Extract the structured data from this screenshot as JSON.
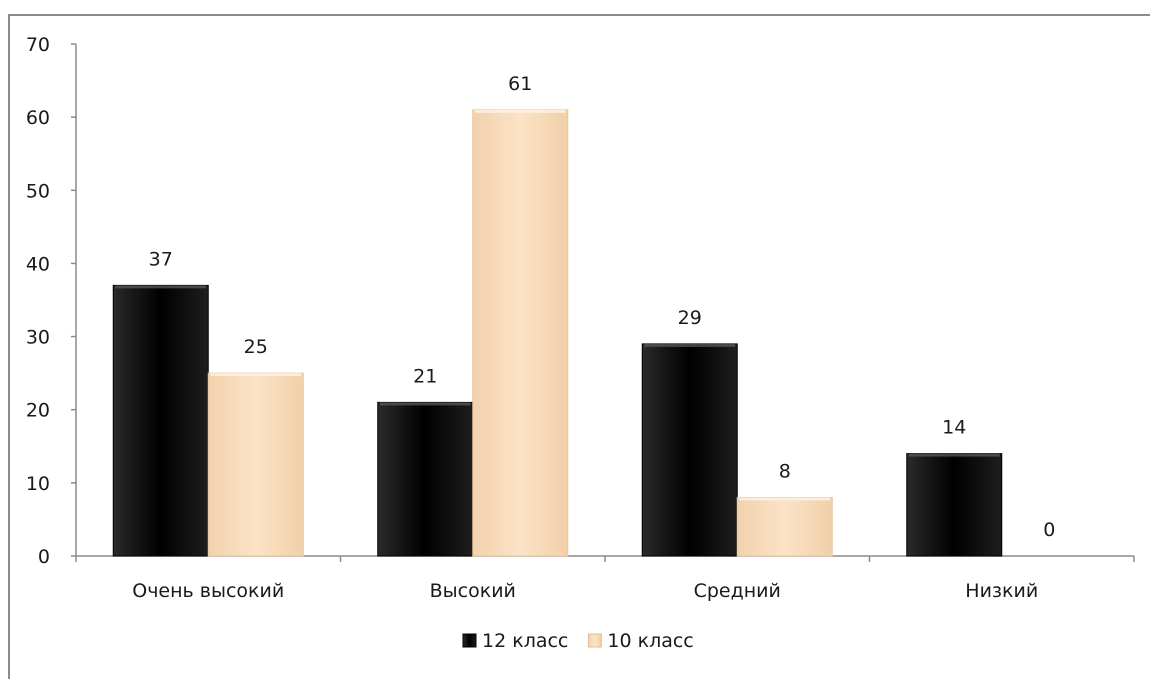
{
  "chart_data": {
    "type": "bar",
    "categories": [
      "Очень высокий",
      "Высокий",
      "Средний",
      "Низкий"
    ],
    "series": [
      {
        "name": "12 класс",
        "values": [
          37,
          21,
          29,
          14
        ],
        "color": "#111111"
      },
      {
        "name": "10 класс",
        "values": [
          25,
          61,
          8,
          0
        ],
        "color": "#f7d9b8"
      }
    ],
    "ylim": [
      0,
      70
    ],
    "yticks": [
      0,
      10,
      20,
      30,
      40,
      50,
      60,
      70
    ],
    "grid": false,
    "legend_position": "bottom",
    "data_labels": true
  }
}
